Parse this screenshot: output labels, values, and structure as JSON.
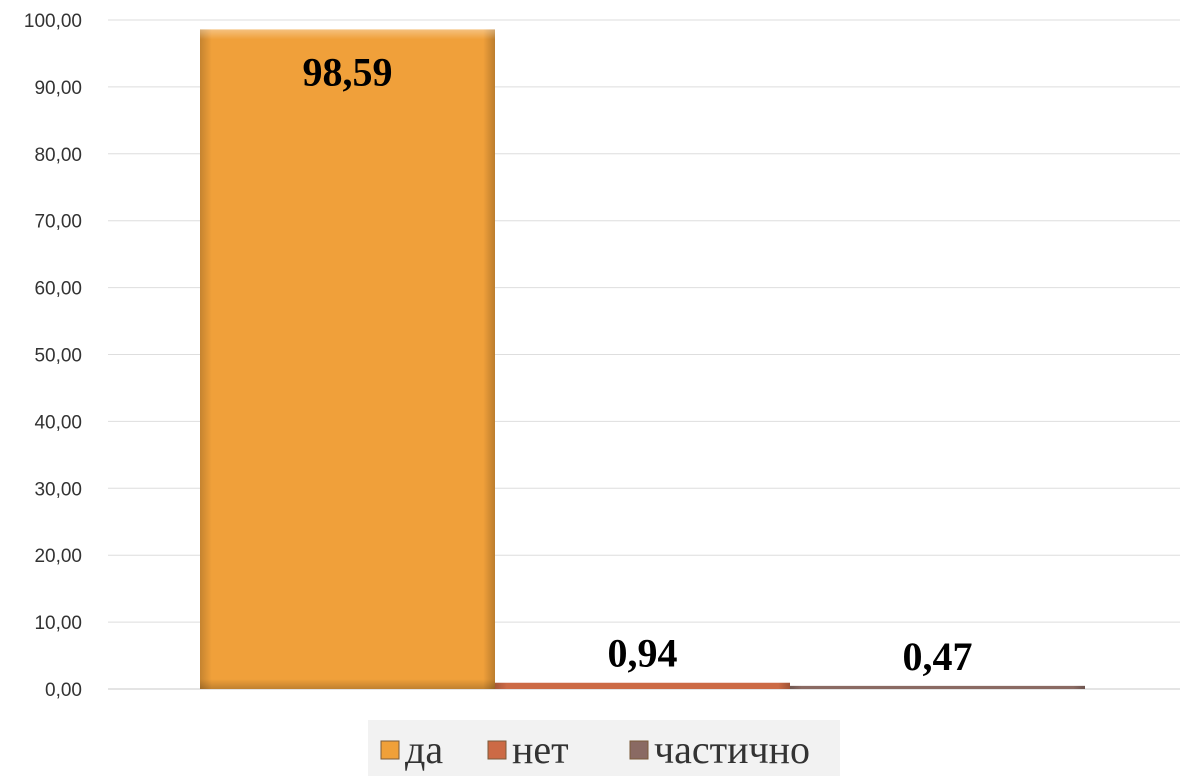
{
  "chart_data": {
    "type": "bar",
    "categories": [
      ""
    ],
    "series": [
      {
        "name": "да",
        "values": [
          98.59
        ],
        "label": "98,59",
        "color": "#f0a03a"
      },
      {
        "name": "нет",
        "values": [
          0.94
        ],
        "label": "0,94",
        "color": "#cc6a45"
      },
      {
        "name": "частично",
        "values": [
          0.47
        ],
        "label": "0,47",
        "color": "#8a6a63"
      }
    ],
    "ylim": [
      0,
      100
    ],
    "yticks": [
      0,
      10,
      20,
      30,
      40,
      50,
      60,
      70,
      80,
      90,
      100
    ],
    "ytick_labels": [
      "0,00",
      "10,00",
      "20,00",
      "30,00",
      "40,00",
      "50,00",
      "60,00",
      "70,00",
      "80,00",
      "90,00",
      "100,00"
    ],
    "grid": true,
    "legend": "bottom",
    "title": "",
    "xlabel": "",
    "ylabel": ""
  }
}
